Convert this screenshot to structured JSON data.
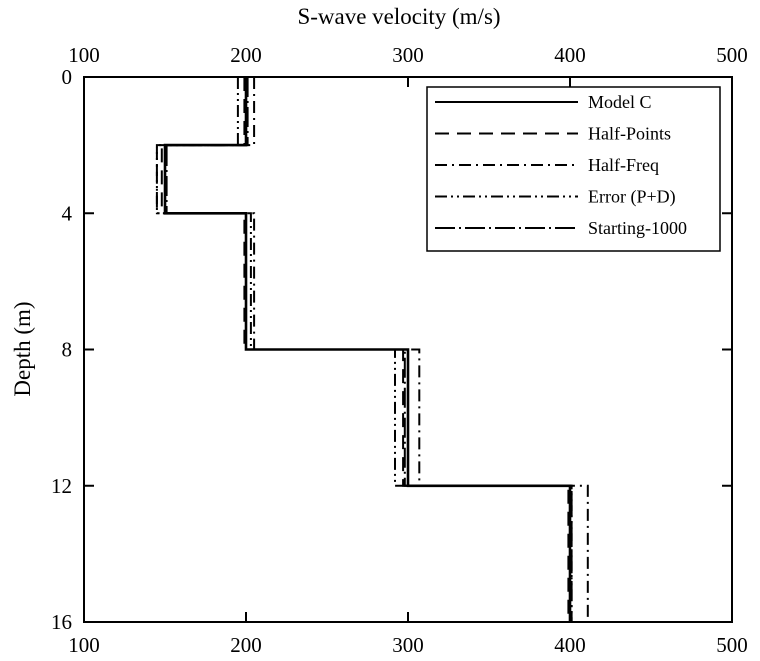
{
  "chart_data": {
    "type": "line",
    "title": "",
    "xlabel": "S-wave velocity (m/s)",
    "ylabel": "Depth (m)",
    "xlim": [
      100,
      500
    ],
    "ylim": [
      16,
      0
    ],
    "x_ticks": [
      "100",
      "200",
      "300",
      "400",
      "500"
    ],
    "y_ticks": [
      "0",
      "4",
      "8",
      "12",
      "16"
    ],
    "x_axis_position": "top-and-bottom",
    "grid": false,
    "legend_position": "top-right",
    "series": [
      {
        "name": "Model C",
        "style": "solid",
        "points": [
          [
            200,
            0
          ],
          [
            200,
            2
          ],
          [
            150,
            2
          ],
          [
            150,
            4
          ],
          [
            200,
            4
          ],
          [
            200,
            8
          ],
          [
            300,
            8
          ],
          [
            300,
            12
          ],
          [
            400,
            12
          ],
          [
            400,
            16
          ]
        ]
      },
      {
        "name": "Half-Points",
        "style": "dashed",
        "points": [
          [
            199,
            0
          ],
          [
            199,
            2
          ],
          [
            148,
            2
          ],
          [
            148,
            4
          ],
          [
            199,
            4
          ],
          [
            199,
            8
          ],
          [
            297,
            8
          ],
          [
            297,
            12
          ],
          [
            399,
            12
          ],
          [
            399,
            16
          ]
        ]
      },
      {
        "name": "Half-Freq",
        "style": "dash-dot",
        "points": [
          [
            205,
            0
          ],
          [
            205,
            2
          ],
          [
            145,
            2
          ],
          [
            145,
            4
          ],
          [
            205,
            4
          ],
          [
            205,
            8
          ],
          [
            307,
            8
          ],
          [
            307,
            12
          ],
          [
            411,
            12
          ],
          [
            411,
            16
          ]
        ]
      },
      {
        "name": "Error (P+D)",
        "style": "dash-dot-dot",
        "points": [
          [
            195,
            0
          ],
          [
            195,
            2
          ],
          [
            145,
            2
          ],
          [
            145,
            4
          ],
          [
            203,
            4
          ],
          [
            203,
            8
          ],
          [
            292,
            8
          ],
          [
            292,
            12
          ],
          [
            401,
            12
          ],
          [
            401,
            16
          ]
        ]
      },
      {
        "name": "Starting-1000",
        "style": "long-dash-dot",
        "points": [
          [
            201,
            0
          ],
          [
            201,
            2
          ],
          [
            151,
            2
          ],
          [
            151,
            4
          ],
          [
            200,
            4
          ],
          [
            200,
            8
          ],
          [
            298,
            8
          ],
          [
            298,
            12
          ],
          [
            401,
            12
          ],
          [
            401,
            16
          ]
        ]
      }
    ]
  }
}
